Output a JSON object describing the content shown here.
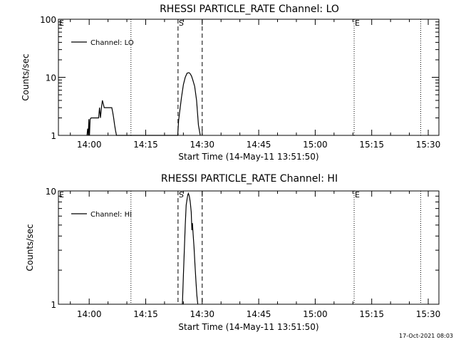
{
  "chart_data": [
    {
      "type": "line",
      "title": "RHESSI PARTICLE_RATE Channel: LO",
      "xlabel": "Start Time (14-May-11 13:51:50)",
      "ylabel": "Counts/sec",
      "yscale": "log",
      "ylim": [
        1,
        100
      ],
      "xlim": [
        "13:51:50",
        "15:32:50"
      ],
      "x_ticks": [
        "14:00",
        "14:15",
        "14:30",
        "14:45",
        "15:00",
        "15:15",
        "15:30"
      ],
      "y_ticks": [
        "1",
        "10",
        "100"
      ],
      "legend": {
        "placement": "top-left",
        "entries": [
          "Channel: LO"
        ]
      },
      "markers": [
        {
          "label": "E",
          "time": "13:51:50",
          "style": "dotted"
        },
        {
          "label": "",
          "time": "14:11:05",
          "style": "dotted"
        },
        {
          "label": "S",
          "time": "14:23:35",
          "style": "dashed"
        },
        {
          "label": "",
          "time": "14:30:00",
          "style": "dashed"
        },
        {
          "label": "E",
          "time": "15:10:20",
          "style": "dotted"
        },
        {
          "label": "",
          "time": "15:28:00",
          "style": "dotted"
        }
      ],
      "series": [
        {
          "name": "Channel: LO",
          "x": [
            "13:59:25",
            "13:59:35",
            "13:59:45",
            "13:59:55",
            "14:00:05",
            "14:00:15",
            "14:00:30",
            "14:01:30",
            "14:02:30",
            "14:02:45",
            "14:03:00",
            "14:03:15",
            "14:03:30",
            "14:04:00",
            "14:05:00",
            "14:05:45",
            "14:06:00",
            "14:06:15",
            "14:06:30",
            "14:06:45",
            "14:07:00",
            "14:07:15",
            "14:07:30",
            "14:23:30",
            "14:23:45",
            "14:24:00",
            "14:24:30",
            "14:25:00",
            "14:25:30",
            "14:26:00",
            "14:26:30",
            "14:26:50",
            "14:27:10",
            "14:27:30",
            "14:28:00",
            "14:28:30",
            "14:29:00",
            "14:29:30"
          ],
          "y": [
            1,
            1.3,
            1,
            1.9,
            1,
            1.9,
            2,
            2,
            2,
            3,
            2,
            3,
            4,
            3,
            3,
            3,
            3,
            2.5,
            2,
            1.5,
            1.2,
            1,
            1,
            1,
            1.8,
            2.5,
            4.5,
            7.5,
            10,
            11.8,
            12,
            11.5,
            10.5,
            9,
            7,
            4,
            1.5,
            1
          ]
        }
      ]
    },
    {
      "type": "line",
      "title": "RHESSI PARTICLE_RATE Channel: HI",
      "xlabel": "Start Time (14-May-11 13:51:50)",
      "ylabel": "Counts/sec",
      "yscale": "log",
      "ylim": [
        1,
        10
      ],
      "xlim": [
        "13:51:50",
        "15:32:50"
      ],
      "x_ticks": [
        "14:00",
        "14:15",
        "14:30",
        "14:45",
        "15:00",
        "15:15",
        "15:30"
      ],
      "y_ticks": [
        "1",
        "10"
      ],
      "legend": {
        "placement": "top-left",
        "entries": [
          "Channel: HI"
        ]
      },
      "markers": [
        {
          "label": "E",
          "time": "13:51:50",
          "style": "dotted"
        },
        {
          "label": "",
          "time": "14:11:05",
          "style": "dotted"
        },
        {
          "label": "S",
          "time": "14:23:35",
          "style": "dashed"
        },
        {
          "label": "",
          "time": "14:30:00",
          "style": "dashed"
        },
        {
          "label": "E",
          "time": "15:10:20",
          "style": "dotted"
        },
        {
          "label": "",
          "time": "15:28:00",
          "style": "dotted"
        }
      ],
      "series": [
        {
          "name": "Channel: HI",
          "x": [
            "14:24:45",
            "14:25:00",
            "14:25:15",
            "14:25:30",
            "14:25:45",
            "14:26:00",
            "14:26:10",
            "14:26:20",
            "14:26:35",
            "14:26:50",
            "14:27:05",
            "14:27:15",
            "14:27:25",
            "14:27:35",
            "14:27:50",
            "14:28:05",
            "14:28:20",
            "14:28:35",
            "14:28:50"
          ],
          "y": [
            1,
            1.8,
            3,
            5,
            7.5,
            8.5,
            9.2,
            9.5,
            9,
            8,
            6.5,
            4.5,
            5.2,
            4.2,
            3.2,
            2.2,
            1.6,
            1.2,
            1
          ]
        }
      ]
    }
  ],
  "footer": {
    "timestamp": "17-Oct-2021 08:03"
  }
}
